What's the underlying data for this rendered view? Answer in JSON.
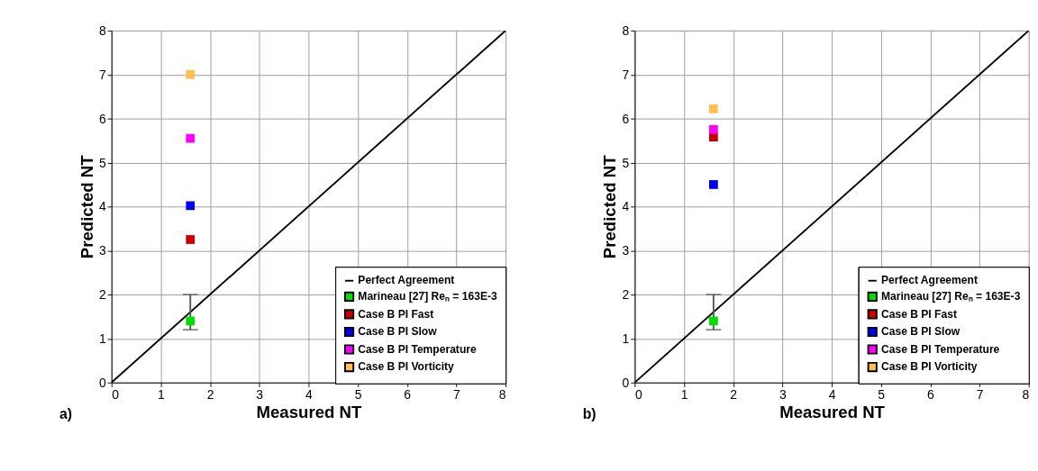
{
  "chart_data": [
    {
      "type": "scatter",
      "xlabel": "Measured NT",
      "ylabel": "Predicted NT",
      "xlim": [
        0,
        8
      ],
      "ylim": [
        0,
        8
      ],
      "xticks": [
        0,
        1,
        2,
        3,
        4,
        5,
        6,
        7,
        8
      ],
      "yticks": [
        0,
        1,
        2,
        3,
        4,
        5,
        6,
        7,
        8
      ],
      "grid": true,
      "legend": "bottom right",
      "marker": "square",
      "annotations": [
        "a)"
      ],
      "series": [
        {
          "name": "Perfect Agreement",
          "type": "line",
          "marker": "none",
          "color": "#000000",
          "x": [
            0,
            8
          ],
          "values": [
            0,
            8
          ]
        },
        {
          "name": "Marineau [27] Reₙ = 163E-3",
          "color": "#00dd00",
          "x": [
            1.6
          ],
          "values": [
            1.4
          ],
          "errors": [
            [
              1.2,
              2.0
            ]
          ]
        },
        {
          "name": "Case B PI Fast",
          "color": "#cc0000",
          "x": [
            1.6
          ],
          "values": [
            3.25
          ]
        },
        {
          "name": "Case B PI Slow",
          "color": "#0000ee",
          "x": [
            1.6
          ],
          "values": [
            4.02
          ]
        },
        {
          "name": "Case B PI Temperature",
          "color": "#ff00ff",
          "x": [
            1.6
          ],
          "values": [
            5.55
          ]
        },
        {
          "name": "Case B PI Vorticity",
          "color": "#ffc050",
          "x": [
            1.6
          ],
          "values": [
            7.0
          ]
        }
      ]
    },
    {
      "type": "scatter",
      "xlabel": "Measured NT",
      "ylabel": "Predicted NT",
      "xlim": [
        0,
        8
      ],
      "ylim": [
        0,
        8
      ],
      "xticks": [
        0,
        1,
        2,
        3,
        4,
        5,
        6,
        7,
        8
      ],
      "yticks": [
        0,
        1,
        2,
        3,
        4,
        5,
        6,
        7,
        8
      ],
      "grid": true,
      "legend": "bottom right",
      "marker": "square",
      "annotations": [
        "b)"
      ],
      "series": [
        {
          "name": "Perfect Agreement",
          "type": "line",
          "marker": "none",
          "color": "#000000",
          "x": [
            0,
            8
          ],
          "values": [
            0,
            8
          ]
        },
        {
          "name": "Marineau [27] Reₙ = 163E-3",
          "color": "#00dd00",
          "x": [
            1.6
          ],
          "values": [
            1.4
          ],
          "errors": [
            [
              1.2,
              2.0
            ]
          ]
        },
        {
          "name": "Case B PI Fast",
          "color": "#cc0000",
          "x": [
            1.6
          ],
          "values": [
            5.58
          ]
        },
        {
          "name": "Case B PI Slow",
          "color": "#0000ee",
          "x": [
            1.6
          ],
          "values": [
            4.5
          ]
        },
        {
          "name": "Case B PI Temperature",
          "color": "#ff00ff",
          "x": [
            1.6
          ],
          "values": [
            5.75
          ]
        },
        {
          "name": "Case B PI Vorticity",
          "color": "#ffc050",
          "x": [
            1.6
          ],
          "values": [
            6.22
          ]
        }
      ]
    }
  ]
}
